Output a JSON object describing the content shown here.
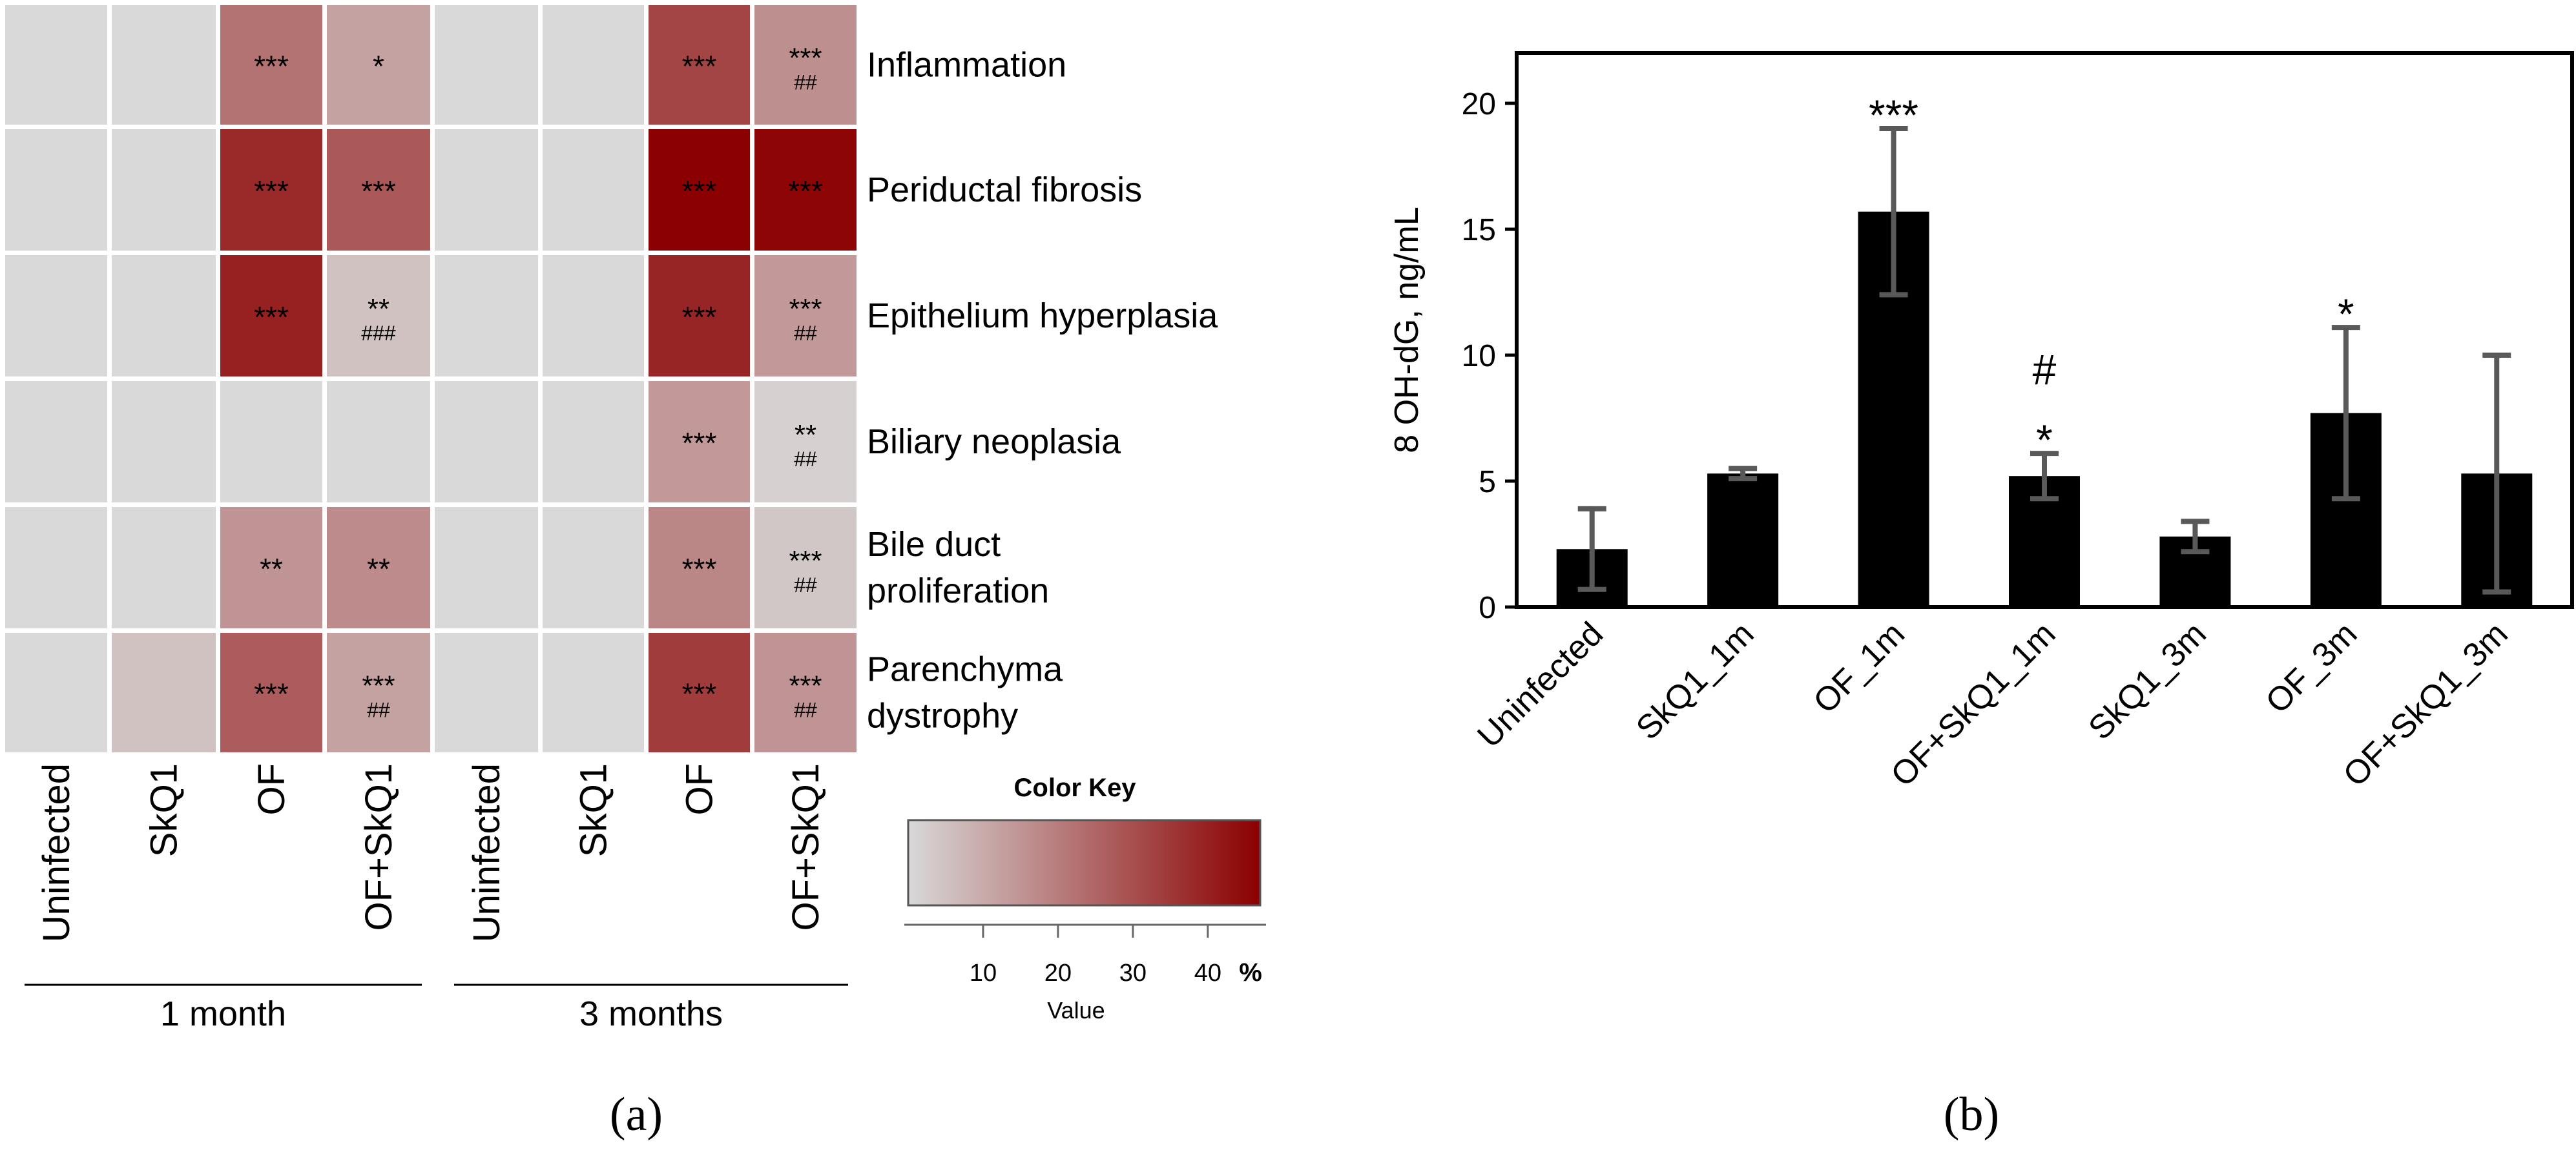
{
  "panel_a": {
    "label": "(a)",
    "rows": [
      "Inflammation",
      "Periductal fibrosis",
      "Epithelium hyperplasia",
      "Biliary neoplasia",
      "Bile duct proliferation",
      "Parenchyma dystrophy"
    ],
    "row_label_lines": [
      [
        "Inflammation"
      ],
      [
        "Periductal fibrosis"
      ],
      [
        "Epithelium hyperplasia"
      ],
      [
        "Biliary neoplasia"
      ],
      [
        "Bile duct",
        "proliferation"
      ],
      [
        "Parenchyma",
        "dystrophy"
      ]
    ],
    "columns": [
      "Uninfected",
      "SkQ1",
      "OF",
      "OF+SkQ1",
      "Uninfected",
      "SkQ1",
      "OF",
      "OF+SkQ1"
    ],
    "groups": [
      {
        "label": "1 month",
        "first_col": 0,
        "last_col": 3
      },
      {
        "label": "3 months",
        "first_col": 4,
        "last_col": 7
      }
    ],
    "values": [
      [
        0,
        0,
        22,
        12,
        0,
        0,
        32,
        16
      ],
      [
        0,
        0,
        38,
        28,
        0,
        0,
        47,
        46
      ],
      [
        0,
        0,
        40,
        5,
        0,
        0,
        39,
        14
      ],
      [
        0,
        0,
        0,
        0,
        0,
        0,
        14,
        2
      ],
      [
        0,
        0,
        15,
        17,
        0,
        0,
        18,
        4
      ],
      [
        0,
        5,
        27,
        12,
        0,
        0,
        34,
        15
      ]
    ],
    "annotations": [
      [
        [
          "",
          ""
        ],
        [
          "",
          ""
        ],
        [
          "***",
          ""
        ],
        [
          "*",
          ""
        ],
        [
          "",
          ""
        ],
        [
          "",
          ""
        ],
        [
          "***",
          ""
        ],
        [
          "***",
          "##"
        ]
      ],
      [
        [
          "",
          ""
        ],
        [
          "",
          ""
        ],
        [
          "***",
          ""
        ],
        [
          "***",
          ""
        ],
        [
          "",
          ""
        ],
        [
          "",
          ""
        ],
        [
          "***",
          ""
        ],
        [
          "***",
          ""
        ]
      ],
      [
        [
          "",
          ""
        ],
        [
          "",
          ""
        ],
        [
          "***",
          ""
        ],
        [
          "**",
          "###"
        ],
        [
          "",
          ""
        ],
        [
          "",
          ""
        ],
        [
          "***",
          ""
        ],
        [
          "***",
          "##"
        ]
      ],
      [
        [
          "",
          ""
        ],
        [
          "",
          ""
        ],
        [
          "",
          ""
        ],
        [
          "",
          ""
        ],
        [
          "",
          ""
        ],
        [
          "",
          ""
        ],
        [
          "***",
          ""
        ],
        [
          "**",
          "##"
        ]
      ],
      [
        [
          "",
          ""
        ],
        [
          "",
          ""
        ],
        [
          "**",
          ""
        ],
        [
          "**",
          ""
        ],
        [
          "",
          ""
        ],
        [
          "",
          ""
        ],
        [
          "***",
          ""
        ],
        [
          "***",
          "##"
        ]
      ],
      [
        [
          "",
          ""
        ],
        [
          "",
          ""
        ],
        [
          "***",
          ""
        ],
        [
          "***",
          "##"
        ],
        [
          "",
          ""
        ],
        [
          "",
          ""
        ],
        [
          "***",
          ""
        ],
        [
          "***",
          "##"
        ]
      ]
    ],
    "color_key": {
      "title": "Color Key",
      "range": [
        0,
        47
      ],
      "ticks": [
        10,
        20,
        30,
        40
      ],
      "unit": "%",
      "xlabel": "Value",
      "low_color": "#d9d9d9",
      "high_color": "#8b0000"
    }
  },
  "chart_data": {
    "type": "bar",
    "label": "(b)",
    "categories": [
      "Uninfected",
      "SkQ1_1m",
      "OF_1m",
      "OF+SkQ1_1m",
      "SkQ1_3m",
      "OF_3m",
      "OF+SkQ1_3m"
    ],
    "values": [
      2.3,
      5.3,
      15.7,
      5.2,
      2.8,
      7.7,
      5.3
    ],
    "errors": [
      1.6,
      0.2,
      3.3,
      0.9,
      0.6,
      3.4,
      4.7
    ],
    "annotations": [
      [],
      [],
      [
        "***"
      ],
      [
        "*",
        "#"
      ],
      [],
      [
        "*"
      ],
      []
    ],
    "title": "",
    "xlabel": "",
    "ylabel": "8 OH-dG,  ng/mL",
    "ylim": [
      0,
      22
    ],
    "yticks": [
      0,
      5,
      10,
      15,
      20
    ],
    "bar_color": "#000000",
    "error_color": "#595959"
  }
}
